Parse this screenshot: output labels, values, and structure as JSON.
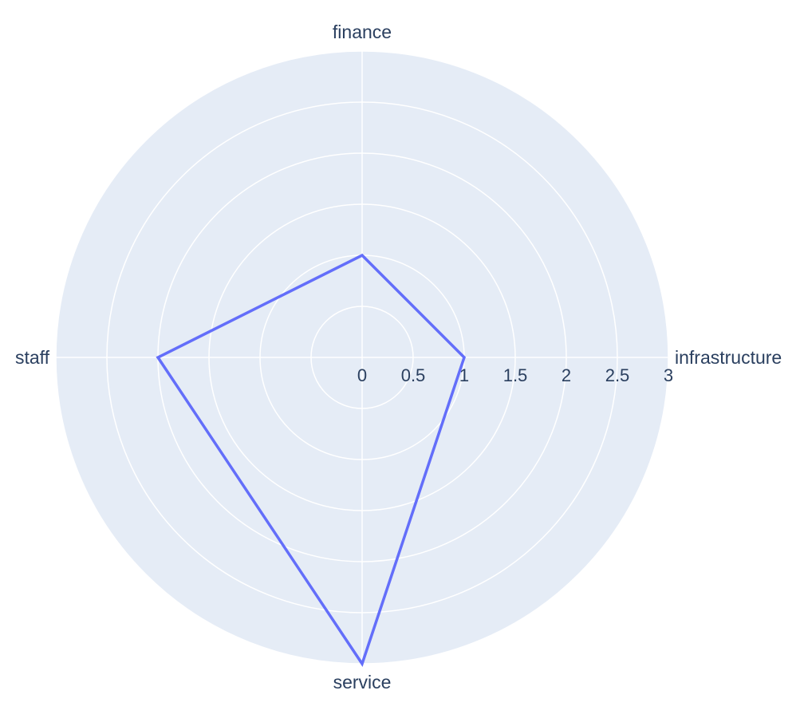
{
  "chart_data": {
    "type": "radar",
    "title": "",
    "categories": [
      "finance",
      "infrastructure",
      "service",
      "staff"
    ],
    "series": [
      {
        "values": [
          1,
          1,
          3,
          2
        ]
      }
    ],
    "radial_range": [
      0,
      3
    ],
    "radial_ticks": [
      "0",
      "0.5",
      "1",
      "1.5",
      "2",
      "2.5",
      "3"
    ],
    "radial_tick_values": [
      0,
      0.5,
      1,
      1.5,
      2,
      2.5,
      3
    ],
    "grid": true,
    "legend": "none",
    "colors": {
      "plot_background": "#e5ecf6",
      "grid": "#ffffff",
      "line": "#636efa",
      "text": "#2a3f5f"
    }
  }
}
